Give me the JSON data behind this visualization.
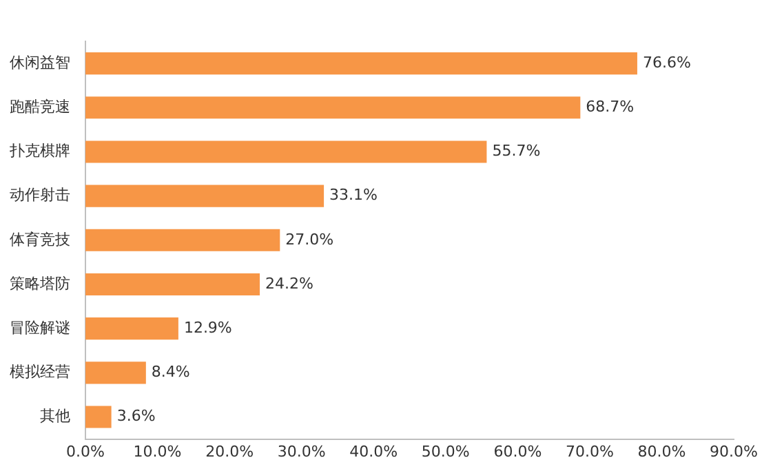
{
  "chart_data": {
    "type": "bar",
    "orientation": "horizontal",
    "categories": [
      "休闲益智",
      "跑酷竞速",
      "扑克棋牌",
      "动作射击",
      "体育竞技",
      "策略塔防",
      "冒险解谜",
      "模拟经营",
      "其他"
    ],
    "values": [
      76.6,
      68.7,
      55.7,
      33.1,
      27.0,
      24.2,
      12.9,
      8.4,
      3.6
    ],
    "value_labels": [
      "76.6%",
      "68.7%",
      "55.7%",
      "33.1%",
      "27.0%",
      "24.2%",
      "12.9%",
      "8.4%",
      "3.6%"
    ],
    "color": "#f79646",
    "xlim": [
      0,
      90
    ],
    "xticks": [
      {
        "value": 0,
        "label": "0.0%"
      },
      {
        "value": 10,
        "label": "10.0%"
      },
      {
        "value": 20,
        "label": "20.0%"
      },
      {
        "value": 30,
        "label": "30.0%"
      },
      {
        "value": 40,
        "label": "40.0%"
      },
      {
        "value": 50,
        "label": "50.0%"
      },
      {
        "value": 60,
        "label": "60.0%"
      },
      {
        "value": 70,
        "label": "70.0%"
      },
      {
        "value": 80,
        "label": "80.0%"
      },
      {
        "value": 90,
        "label": "90.0%"
      }
    ],
    "grid": false,
    "legend": false
  }
}
